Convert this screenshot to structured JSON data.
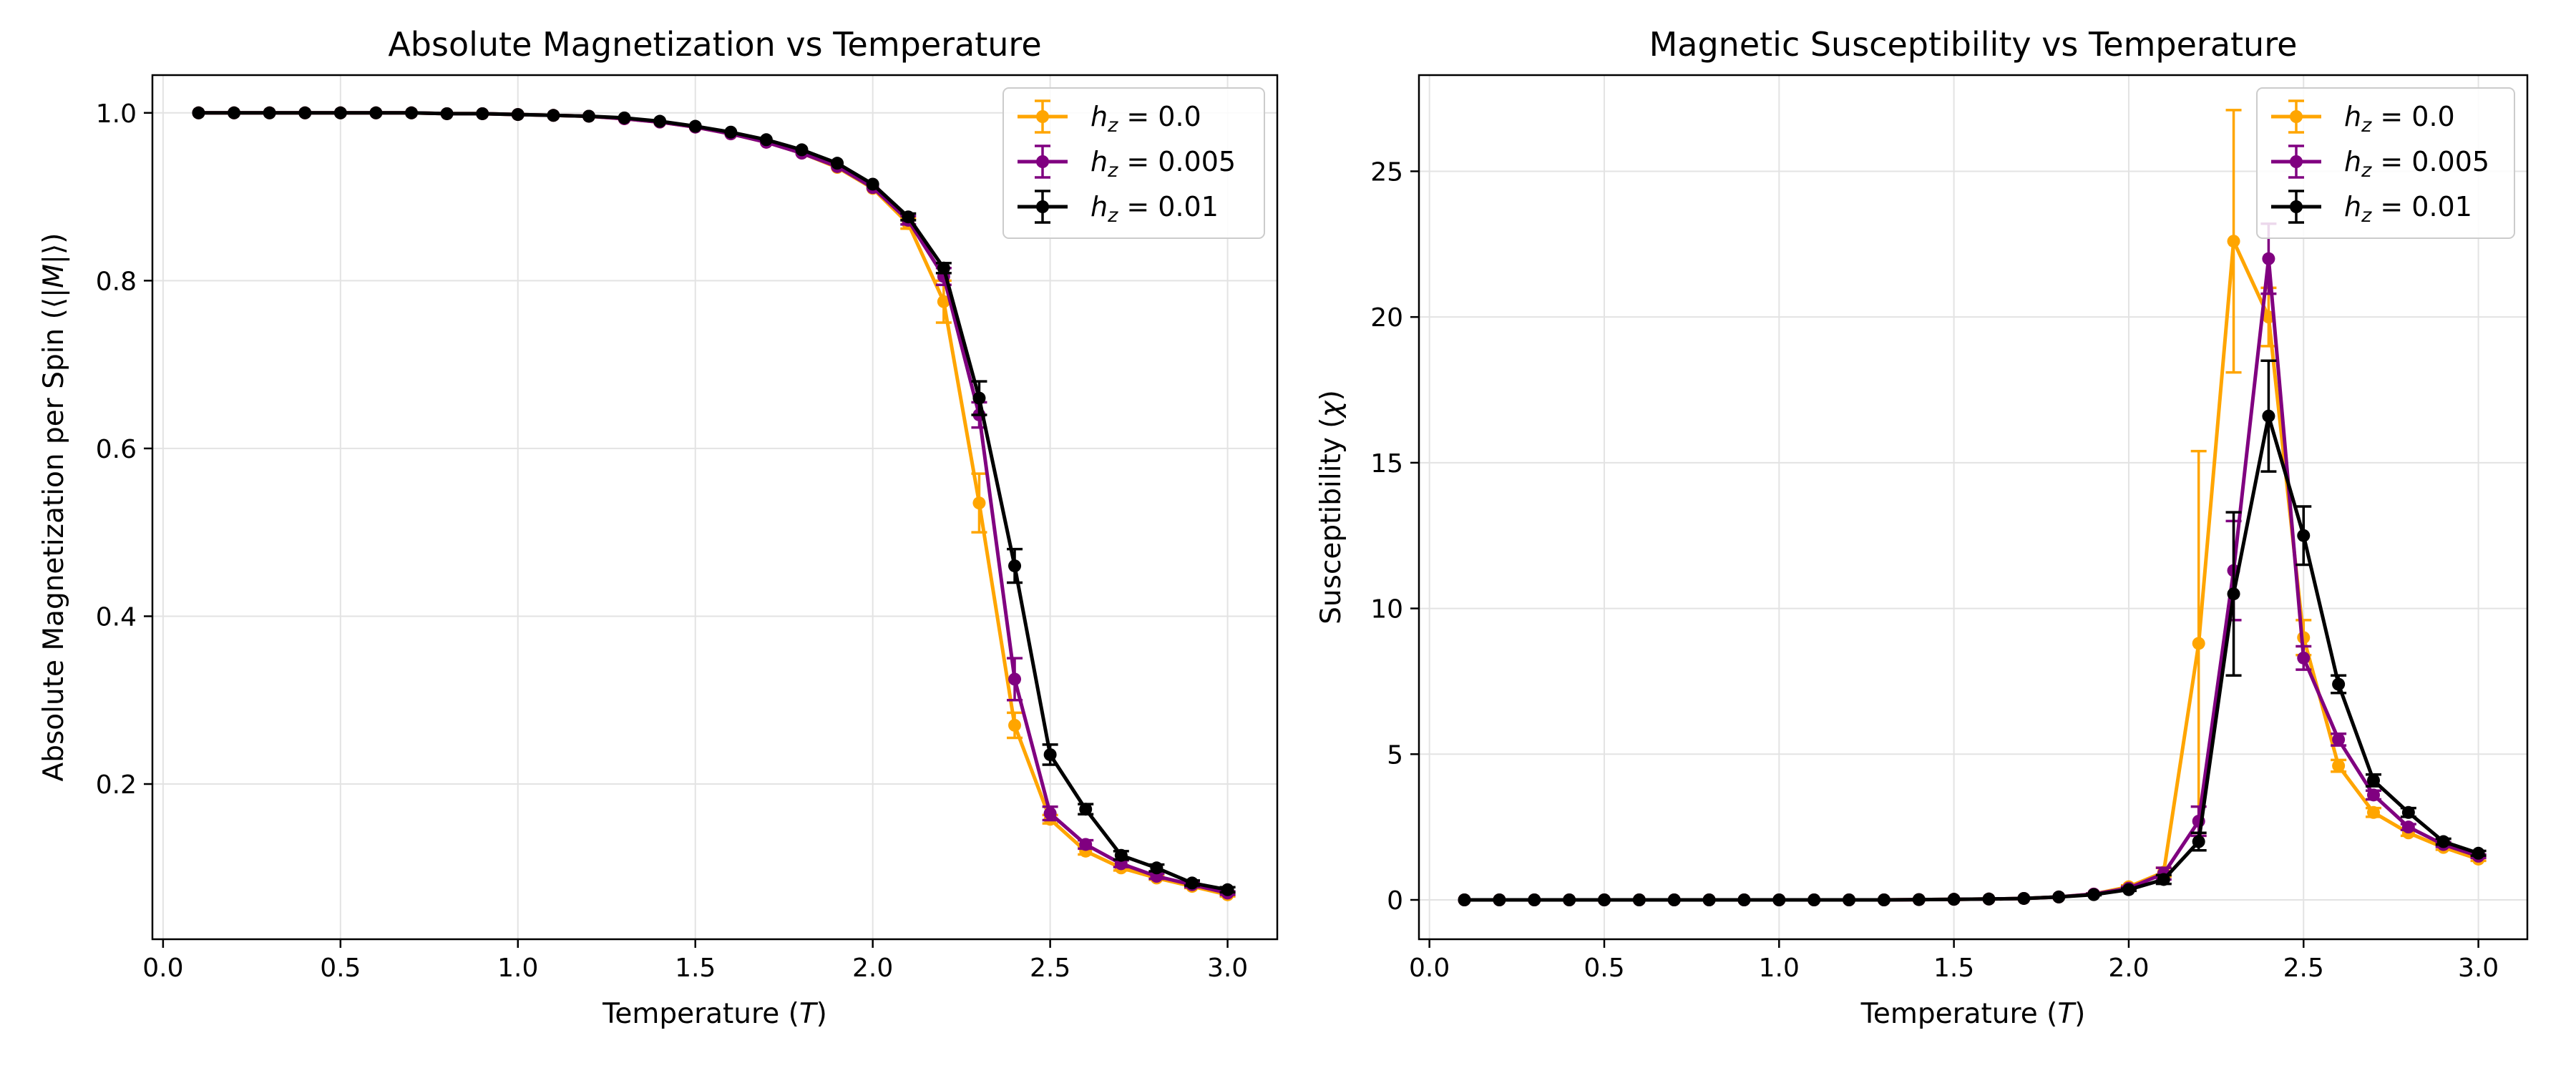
{
  "colors": {
    "h0": "#FFA500",
    "h1": "#800080",
    "h2": "#000000"
  },
  "chart_data": [
    {
      "type": "line",
      "title": "Absolute Magnetization vs Temperature",
      "xlabel": "Temperature (",
      "xlabel_var": "T",
      "xlabel_end": ")",
      "ylabel": "Absolute Magnetization per Spin (⟨",
      "ylabel_var": "|M|",
      "ylabel_end": "⟩)",
      "xlim": [
        -0.03,
        3.14
      ],
      "ylim": [
        0.015,
        1.045
      ],
      "xticks": [
        0.0,
        0.5,
        1.0,
        1.5,
        2.0,
        2.5,
        3.0
      ],
      "xtick_labels": [
        "0.0",
        "0.5",
        "1.0",
        "1.5",
        "2.0",
        "2.5",
        "3.0"
      ],
      "yticks": [
        0.2,
        0.4,
        0.6,
        0.8,
        1.0
      ],
      "ytick_labels": [
        "0.2",
        "0.4",
        "0.6",
        "0.8",
        "1.0"
      ],
      "grid": true,
      "legend": "top-right",
      "x": [
        0.1,
        0.2,
        0.3,
        0.4,
        0.5,
        0.6,
        0.7,
        0.8,
        0.9,
        1.0,
        1.1,
        1.2,
        1.3,
        1.4,
        1.5,
        1.6,
        1.7,
        1.8,
        1.9,
        2.0,
        2.1,
        2.2,
        2.3,
        2.4,
        2.5,
        2.6,
        2.7,
        2.8,
        2.9,
        3.0
      ],
      "series": [
        {
          "name_main": "h",
          "name_sub": "z",
          "name_val": " = 0.0",
          "color": "h0",
          "values": [
            1.0,
            1.0,
            1.0,
            1.0,
            1.0,
            1.0,
            1.0,
            0.999,
            0.999,
            0.998,
            0.997,
            0.996,
            0.993,
            0.989,
            0.983,
            0.975,
            0.965,
            0.952,
            0.935,
            0.91,
            0.868,
            0.775,
            0.535,
            0.27,
            0.158,
            0.12,
            0.1,
            0.088,
            0.078,
            0.068
          ],
          "errors": [
            0,
            0,
            0,
            0,
            0,
            0,
            0,
            0,
            0,
            0,
            0,
            0,
            0,
            0,
            0,
            0,
            0,
            0,
            0,
            0,
            0.006,
            0.025,
            0.035,
            0.015,
            0.005,
            0.004,
            0.003,
            0.002,
            0.002,
            0.002
          ]
        },
        {
          "name_main": "h",
          "name_sub": "z",
          "name_val": " = 0.005",
          "color": "h1",
          "values": [
            1.0,
            1.0,
            1.0,
            1.0,
            1.0,
            1.0,
            1.0,
            0.999,
            0.999,
            0.998,
            0.997,
            0.996,
            0.993,
            0.989,
            0.983,
            0.975,
            0.965,
            0.952,
            0.936,
            0.911,
            0.872,
            0.805,
            0.64,
            0.325,
            0.165,
            0.128,
            0.105,
            0.09,
            0.08,
            0.07
          ],
          "errors": [
            0,
            0,
            0,
            0,
            0,
            0,
            0,
            0,
            0,
            0,
            0,
            0,
            0,
            0,
            0,
            0,
            0,
            0,
            0,
            0,
            0.005,
            0.01,
            0.015,
            0.025,
            0.008,
            0.005,
            0.004,
            0.003,
            0.003,
            0.002
          ]
        },
        {
          "name_main": "h",
          "name_sub": "z",
          "name_val": " = 0.01",
          "color": "h2",
          "values": [
            1.0,
            1.0,
            1.0,
            1.0,
            1.0,
            1.0,
            1.0,
            0.999,
            0.999,
            0.998,
            0.997,
            0.996,
            0.994,
            0.99,
            0.984,
            0.977,
            0.968,
            0.956,
            0.94,
            0.915,
            0.876,
            0.815,
            0.66,
            0.46,
            0.235,
            0.17,
            0.115,
            0.1,
            0.082,
            0.074
          ],
          "errors": [
            0,
            0,
            0,
            0,
            0,
            0,
            0,
            0,
            0,
            0,
            0,
            0,
            0,
            0,
            0,
            0,
            0,
            0,
            0,
            0,
            0.004,
            0.006,
            0.02,
            0.02,
            0.012,
            0.006,
            0.005,
            0.004,
            0.003,
            0.003
          ]
        }
      ]
    },
    {
      "type": "line",
      "title": "Magnetic Susceptibility vs Temperature",
      "xlabel": "Temperature (",
      "xlabel_var": "T",
      "xlabel_end": ")",
      "ylabel": "Susceptibility (",
      "ylabel_var": "χ",
      "ylabel_end": ")",
      "xlim": [
        -0.03,
        3.14
      ],
      "ylim": [
        -1.35,
        28.3
      ],
      "xticks": [
        0.0,
        0.5,
        1.0,
        1.5,
        2.0,
        2.5,
        3.0
      ],
      "xtick_labels": [
        "0.0",
        "0.5",
        "1.0",
        "1.5",
        "2.0",
        "2.5",
        "3.0"
      ],
      "yticks": [
        0,
        5,
        10,
        15,
        20,
        25
      ],
      "ytick_labels": [
        "0",
        "5",
        "10",
        "15",
        "20",
        "25"
      ],
      "grid": true,
      "legend": "top-right",
      "x": [
        0.1,
        0.2,
        0.3,
        0.4,
        0.5,
        0.6,
        0.7,
        0.8,
        0.9,
        1.0,
        1.1,
        1.2,
        1.3,
        1.4,
        1.5,
        1.6,
        1.7,
        1.8,
        1.9,
        2.0,
        2.1,
        2.2,
        2.3,
        2.4,
        2.5,
        2.6,
        2.7,
        2.8,
        2.9,
        3.0
      ],
      "series": [
        {
          "name_main": "h",
          "name_sub": "z",
          "name_val": " = 0.0",
          "color": "h0",
          "values": [
            0,
            0,
            0,
            0,
            0,
            0,
            0,
            0,
            0,
            0,
            0,
            0,
            0,
            0.01,
            0.02,
            0.03,
            0.05,
            0.1,
            0.2,
            0.45,
            0.95,
            8.8,
            22.6,
            20.0,
            9.0,
            4.6,
            3.0,
            2.3,
            1.8,
            1.4
          ],
          "errors": [
            0,
            0,
            0,
            0,
            0,
            0,
            0,
            0,
            0,
            0,
            0,
            0,
            0,
            0,
            0,
            0,
            0,
            0,
            0.02,
            0.05,
            0.15,
            6.6,
            4.5,
            1.0,
            0.6,
            0.2,
            0.15,
            0.1,
            0.08,
            0.06
          ]
        },
        {
          "name_main": "h",
          "name_sub": "z",
          "name_val": " = 0.005",
          "color": "h1",
          "values": [
            0,
            0,
            0,
            0,
            0,
            0,
            0,
            0,
            0,
            0,
            0,
            0,
            0,
            0.01,
            0.02,
            0.03,
            0.05,
            0.1,
            0.2,
            0.4,
            0.9,
            2.7,
            11.3,
            22.0,
            8.3,
            5.5,
            3.6,
            2.5,
            1.9,
            1.5
          ],
          "errors": [
            0,
            0,
            0,
            0,
            0,
            0,
            0,
            0,
            0,
            0,
            0,
            0,
            0,
            0,
            0,
            0,
            0,
            0,
            0.02,
            0.05,
            0.2,
            0.5,
            1.7,
            1.2,
            0.4,
            0.2,
            0.15,
            0.1,
            0.08,
            0.06
          ]
        },
        {
          "name_main": "h",
          "name_sub": "z",
          "name_val": " = 0.01",
          "color": "h2",
          "values": [
            0,
            0,
            0,
            0,
            0,
            0,
            0,
            0,
            0,
            0,
            0,
            0,
            0,
            0.01,
            0.02,
            0.03,
            0.05,
            0.1,
            0.18,
            0.35,
            0.7,
            2.0,
            10.5,
            16.6,
            12.5,
            7.4,
            4.1,
            3.0,
            2.0,
            1.6
          ],
          "errors": [
            0,
            0,
            0,
            0,
            0,
            0,
            0,
            0,
            0,
            0,
            0,
            0,
            0,
            0,
            0,
            0,
            0,
            0,
            0.02,
            0.04,
            0.15,
            0.3,
            2.8,
            1.9,
            1.0,
            0.3,
            0.2,
            0.15,
            0.1,
            0.08
          ]
        }
      ]
    }
  ]
}
